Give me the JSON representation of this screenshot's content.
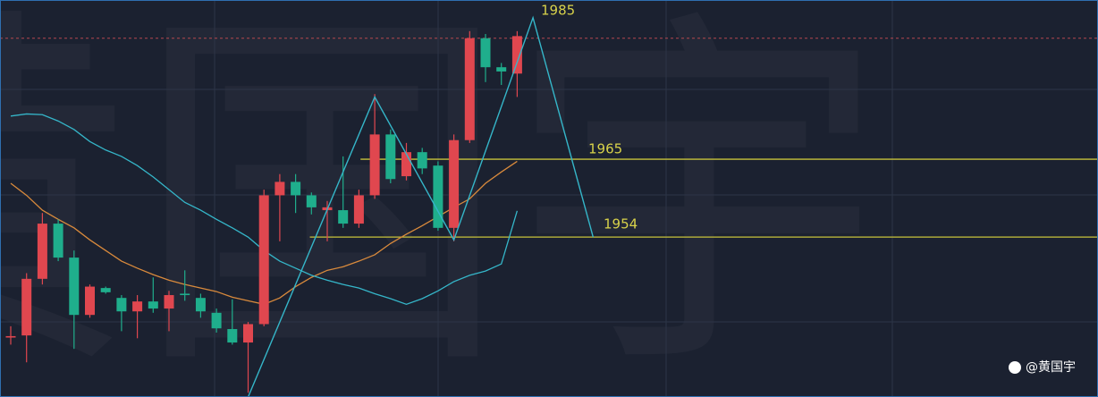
{
  "chart_data": {
    "type": "candlestick",
    "watermark": "黄国宇",
    "credit": "@黄国宇",
    "ylim": [
      1931.4,
      1987.5
    ],
    "up_color": "#e0474f",
    "down_color": "#1fae8c",
    "price_line": {
      "value": 1982.1,
      "color": "#b5474f"
    },
    "ohlc": [
      [
        1939.8,
        1941.4,
        1938.8,
        1940.0
      ],
      [
        1940.1,
        1948.9,
        1936.3,
        1948.1
      ],
      [
        1948.1,
        1957.4,
        1947.3,
        1955.9
      ],
      [
        1955.9,
        1956.5,
        1950.6,
        1951.1
      ],
      [
        1951.1,
        1952.1,
        1938.2,
        1943.0
      ],
      [
        1943.0,
        1947.3,
        1942.6,
        1947.0
      ],
      [
        1946.8,
        1947.0,
        1946.0,
        1946.2
      ],
      [
        1945.4,
        1945.8,
        1940.7,
        1943.5
      ],
      [
        1943.5,
        1945.8,
        1939.7,
        1944.9
      ],
      [
        1944.9,
        1948.3,
        1943.3,
        1943.9
      ],
      [
        1943.9,
        1946.4,
        1940.7,
        1945.8
      ],
      [
        1946.0,
        1949.3,
        1945.0,
        1945.8
      ],
      [
        1945.4,
        1946.0,
        1942.6,
        1943.5
      ],
      [
        1943.3,
        1943.9,
        1940.5,
        1941.1
      ],
      [
        1941.0,
        1945.2,
        1938.8,
        1939.1
      ],
      [
        1939.1,
        1942.0,
        1932.0,
        1941.7
      ],
      [
        1941.7,
        1960.7,
        1941.4,
        1959.9
      ],
      [
        1959.9,
        1962.9,
        1953.4,
        1961.8
      ],
      [
        1961.8,
        1962.9,
        1957.4,
        1959.9
      ],
      [
        1959.9,
        1960.3,
        1957.2,
        1958.2
      ],
      [
        1957.8,
        1959.1,
        1953.4,
        1958.2
      ],
      [
        1957.8,
        1965.4,
        1955.3,
        1955.9
      ],
      [
        1955.9,
        1960.7,
        1955.3,
        1959.9
      ],
      [
        1959.9,
        1974.2,
        1959.4,
        1968.5
      ],
      [
        1968.5,
        1969.2,
        1961.6,
        1962.2
      ],
      [
        1962.6,
        1967.3,
        1962.0,
        1966.0
      ],
      [
        1966.0,
        1966.6,
        1962.9,
        1963.7
      ],
      [
        1964.1,
        1964.7,
        1954.9,
        1955.3
      ],
      [
        1955.3,
        1968.5,
        1953.4,
        1967.7
      ],
      [
        1967.7,
        1983.1,
        1967.3,
        1982.1
      ],
      [
        1982.1,
        1982.7,
        1975.9,
        1978.0
      ],
      [
        1978.0,
        1978.6,
        1975.5,
        1977.4
      ],
      [
        1977.1,
        1983.1,
        1973.8,
        1982.4
      ]
    ],
    "lines": [
      {
        "color": "#d98a3c",
        "values": [
          1961.6,
          1959.9,
          1957.8,
          1956.5,
          1955.3,
          1953.6,
          1952.1,
          1950.6,
          1949.6,
          1948.7,
          1947.9,
          1947.3,
          1946.8,
          1946.3,
          1945.5,
          1945.0,
          1944.5,
          1945.4,
          1947.0,
          1948.3,
          1949.3,
          1949.8,
          1950.6,
          1951.5,
          1953.1,
          1954.4,
          1955.6,
          1956.9,
          1958.2,
          1959.4,
          1961.6,
          1963.2,
          1964.7
        ]
      },
      {
        "color": "#35b6c9",
        "values": [
          1971.1,
          1971.4,
          1971.3,
          1970.4,
          1969.2,
          1967.5,
          1966.3,
          1965.4,
          1964.1,
          1962.5,
          1960.7,
          1958.9,
          1957.8,
          1956.5,
          1955.3,
          1954.0,
          1952.1,
          1950.6,
          1949.6,
          1948.6,
          1947.9,
          1947.3,
          1946.8,
          1946.0,
          1945.3,
          1944.5,
          1945.3,
          1946.4,
          1947.7,
          1948.6,
          1949.2,
          1950.2,
          1957.7
        ]
      }
    ],
    "pattern": {
      "color": "#35b6c9",
      "x": [
        15,
        23,
        28,
        33,
        36.8
      ],
      "values": [
        1931.4,
        1973.8,
        1953.6,
        1985,
        1954
      ]
    },
    "levels": [
      {
        "value": 1965,
        "start": 22.1,
        "color": "#c8c23a"
      },
      {
        "value": 1954,
        "start": 18.9,
        "color": "#c8c23a"
      }
    ]
  }
}
